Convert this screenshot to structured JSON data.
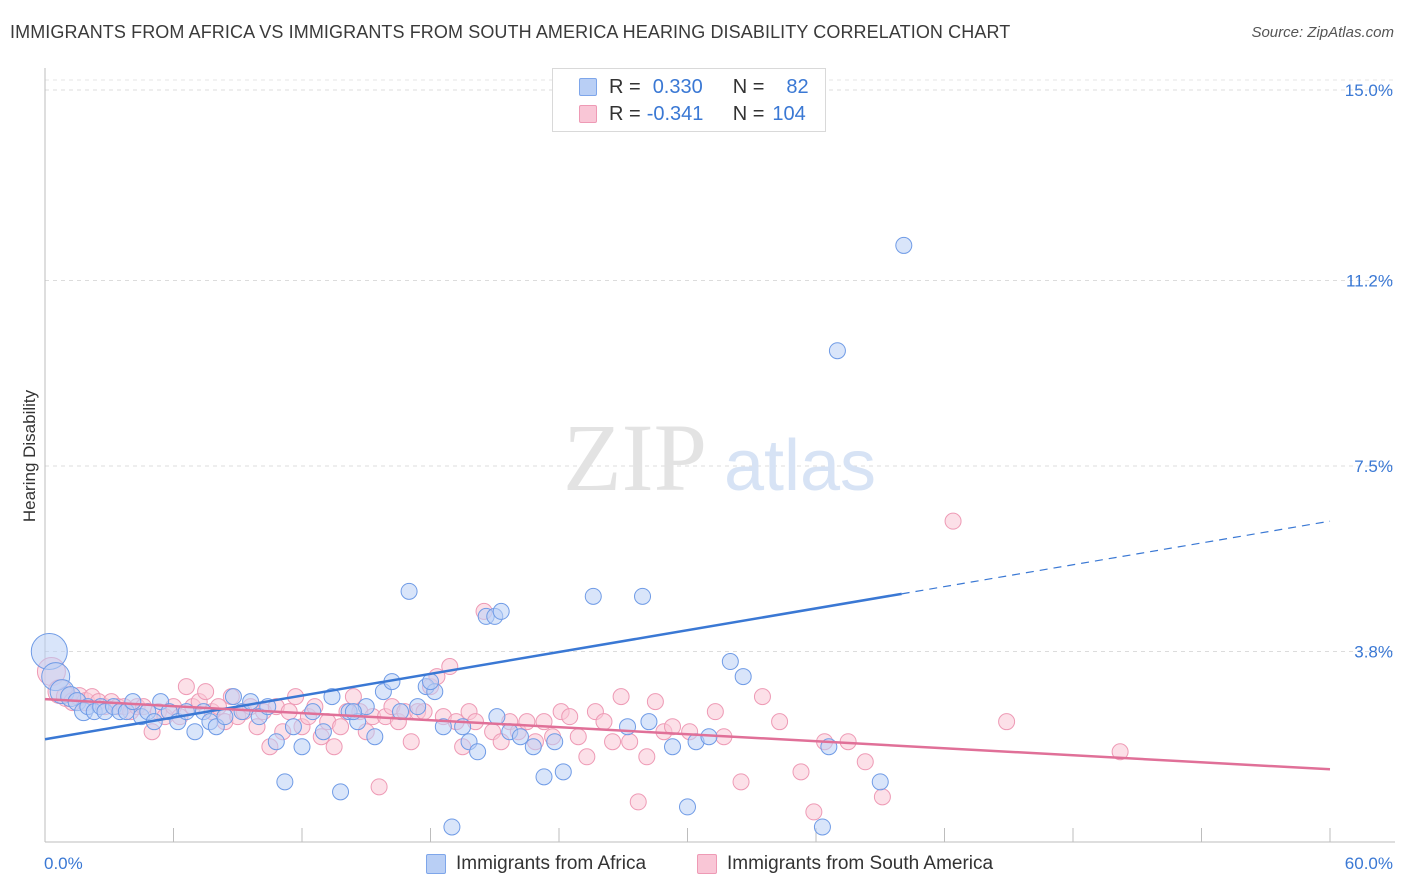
{
  "title": "IMMIGRANTS FROM AFRICA VS IMMIGRANTS FROM SOUTH AMERICA HEARING DISABILITY CORRELATION CHART",
  "source": "Source: ZipAtlas.com",
  "watermark": {
    "zip": "ZIP",
    "atlas": "atlas"
  },
  "legend": {
    "r_label": "R =",
    "n_label": "N =",
    "rows": [
      {
        "r": "0.330",
        "n": "82"
      },
      {
        "r": "-0.341",
        "n": "104"
      }
    ]
  },
  "bottom_legend": [
    "Immigrants from Africa",
    "Immigrants from South America"
  ],
  "colors": {
    "blue": "#3a78d4",
    "pink": "#e07098",
    "blue_fill": "#b9cff5",
    "pink_fill": "#f9c6d6",
    "axis_text": "#3a78d4"
  },
  "chart_data": {
    "type": "scatter",
    "title": "IMMIGRANTS FROM AFRICA VS IMMIGRANTS FROM SOUTH AMERICA HEARING DISABILITY CORRELATION CHART",
    "xlabel": "",
    "ylabel": "Hearing Disability",
    "xlim": [
      0,
      60
    ],
    "ylim": [
      0,
      15.2
    ],
    "x_tick_labels": [
      "0.0%",
      "60.0%"
    ],
    "y_ticks": [
      3.8,
      7.5,
      11.2,
      15.0
    ],
    "y_tick_labels": [
      "3.8%",
      "7.5%",
      "11.2%",
      "15.0%"
    ],
    "grid": "horizontal dashed",
    "series": [
      {
        "name": "Immigrants from Africa",
        "color": "#3a78d4",
        "r": 0.33,
        "n": 82,
        "trend": {
          "x0": 0,
          "y0": 2.05,
          "x1": 40,
          "y1": 4.95,
          "dashed_to_x": 60,
          "dashed_to_y": 6.4
        },
        "points": [
          [
            0.2,
            3.8,
            18
          ],
          [
            0.5,
            3.3,
            14
          ],
          [
            0.8,
            3.0,
            12
          ],
          [
            1.2,
            2.9,
            10
          ],
          [
            1.5,
            2.8,
            9
          ],
          [
            1.8,
            2.6,
            9
          ],
          [
            2.0,
            2.7,
            8
          ],
          [
            2.3,
            2.6,
            8
          ],
          [
            2.6,
            2.7,
            8
          ],
          [
            2.8,
            2.6,
            8
          ],
          [
            3.2,
            2.7,
            8
          ],
          [
            3.5,
            2.6,
            8
          ],
          [
            3.8,
            2.6,
            8
          ],
          [
            4.1,
            2.8,
            8
          ],
          [
            4.5,
            2.5,
            8
          ],
          [
            4.8,
            2.6,
            8
          ],
          [
            5.1,
            2.4,
            8
          ],
          [
            5.4,
            2.8,
            8
          ],
          [
            5.8,
            2.6,
            8
          ],
          [
            6.2,
            2.4,
            8
          ],
          [
            6.6,
            2.6,
            8
          ],
          [
            7.0,
            2.2,
            8
          ],
          [
            7.4,
            2.6,
            8
          ],
          [
            7.7,
            2.4,
            8
          ],
          [
            8.0,
            2.3,
            8
          ],
          [
            8.4,
            2.5,
            8
          ],
          [
            8.8,
            2.9,
            8
          ],
          [
            9.2,
            2.6,
            8
          ],
          [
            9.6,
            2.8,
            8
          ],
          [
            10.0,
            2.5,
            8
          ],
          [
            10.4,
            2.7,
            8
          ],
          [
            10.8,
            2.0,
            8
          ],
          [
            11.2,
            1.2,
            8
          ],
          [
            11.6,
            2.3,
            8
          ],
          [
            12.0,
            1.9,
            8
          ],
          [
            12.5,
            2.6,
            8
          ],
          [
            13.0,
            2.2,
            8
          ],
          [
            13.4,
            2.9,
            8
          ],
          [
            13.8,
            1.0,
            8
          ],
          [
            14.2,
            2.6,
            8
          ],
          [
            14.6,
            2.4,
            8
          ],
          [
            15.0,
            2.7,
            8
          ],
          [
            15.4,
            2.1,
            8
          ],
          [
            15.8,
            3.0,
            8
          ],
          [
            16.2,
            3.2,
            8
          ],
          [
            16.6,
            2.6,
            8
          ],
          [
            17.0,
            5.0,
            8
          ],
          [
            17.4,
            2.7,
            8
          ],
          [
            17.8,
            3.1,
            8
          ],
          [
            18.2,
            3.0,
            8
          ],
          [
            18.6,
            2.3,
            8
          ],
          [
            19.0,
            0.3,
            8
          ],
          [
            19.5,
            2.3,
            8
          ],
          [
            19.8,
            2.0,
            8
          ],
          [
            20.2,
            1.8,
            8
          ],
          [
            20.6,
            4.5,
            8
          ],
          [
            21.0,
            4.5,
            8
          ],
          [
            21.3,
            4.6,
            8
          ],
          [
            21.7,
            2.2,
            8
          ],
          [
            22.2,
            2.1,
            8
          ],
          [
            22.8,
            1.9,
            8
          ],
          [
            23.3,
            1.3,
            8
          ],
          [
            23.8,
            2.0,
            8
          ],
          [
            24.2,
            1.4,
            8
          ],
          [
            25.6,
            4.9,
            8
          ],
          [
            27.2,
            2.3,
            8
          ],
          [
            27.9,
            4.9,
            8
          ],
          [
            28.2,
            2.4,
            8
          ],
          [
            29.3,
            1.9,
            8
          ],
          [
            30.0,
            0.7,
            8
          ],
          [
            30.4,
            2.0,
            8
          ],
          [
            31.0,
            2.1,
            8
          ],
          [
            32.0,
            3.6,
            8
          ],
          [
            32.6,
            3.3,
            8
          ],
          [
            36.3,
            0.3,
            8
          ],
          [
            36.6,
            1.9,
            8
          ],
          [
            37.0,
            9.8,
            8
          ],
          [
            39.0,
            1.2,
            8
          ],
          [
            40.1,
            11.9,
            8
          ],
          [
            14.4,
            2.6,
            8
          ],
          [
            18.0,
            3.2,
            8
          ],
          [
            21.1,
            2.5,
            8
          ]
        ]
      },
      {
        "name": "Immigrants from South America",
        "color": "#e07098",
        "r": -0.341,
        "n": 104,
        "trend": {
          "x0": 0,
          "y0": 2.85,
          "x1": 60,
          "y1": 1.45
        },
        "points": [
          [
            0.3,
            3.4,
            14
          ],
          [
            0.7,
            3.0,
            12
          ],
          [
            1.0,
            2.9,
            10
          ],
          [
            1.3,
            2.8,
            9
          ],
          [
            1.6,
            2.9,
            9
          ],
          [
            1.9,
            2.8,
            9
          ],
          [
            2.2,
            2.9,
            8
          ],
          [
            2.5,
            2.8,
            8
          ],
          [
            2.8,
            2.7,
            8
          ],
          [
            3.1,
            2.8,
            8
          ],
          [
            3.4,
            2.7,
            8
          ],
          [
            3.7,
            2.7,
            8
          ],
          [
            4.0,
            2.6,
            8
          ],
          [
            4.3,
            2.7,
            8
          ],
          [
            4.6,
            2.7,
            8
          ],
          [
            5.0,
            2.2,
            8
          ],
          [
            5.3,
            2.6,
            8
          ],
          [
            5.6,
            2.5,
            8
          ],
          [
            6.0,
            2.7,
            8
          ],
          [
            6.3,
            2.5,
            8
          ],
          [
            6.6,
            3.1,
            8
          ],
          [
            6.9,
            2.7,
            8
          ],
          [
            7.2,
            2.8,
            8
          ],
          [
            7.5,
            3.0,
            8
          ],
          [
            7.8,
            2.6,
            8
          ],
          [
            8.1,
            2.7,
            8
          ],
          [
            8.4,
            2.4,
            8
          ],
          [
            8.7,
            2.9,
            8
          ],
          [
            9.0,
            2.5,
            8
          ],
          [
            9.3,
            2.6,
            8
          ],
          [
            9.6,
            2.7,
            8
          ],
          [
            9.9,
            2.3,
            8
          ],
          [
            10.2,
            2.6,
            8
          ],
          [
            10.5,
            1.9,
            8
          ],
          [
            10.8,
            2.7,
            8
          ],
          [
            11.1,
            2.2,
            8
          ],
          [
            11.4,
            2.6,
            8
          ],
          [
            11.7,
            2.9,
            8
          ],
          [
            12.0,
            2.3,
            8
          ],
          [
            12.3,
            2.5,
            8
          ],
          [
            12.6,
            2.7,
            8
          ],
          [
            12.9,
            2.1,
            8
          ],
          [
            13.2,
            2.4,
            8
          ],
          [
            13.5,
            1.9,
            8
          ],
          [
            13.8,
            2.3,
            8
          ],
          [
            14.1,
            2.6,
            8
          ],
          [
            14.4,
            2.9,
            8
          ],
          [
            14.7,
            2.6,
            8
          ],
          [
            15.0,
            2.2,
            8
          ],
          [
            15.3,
            2.5,
            8
          ],
          [
            15.6,
            1.1,
            8
          ],
          [
            15.9,
            2.5,
            8
          ],
          [
            16.2,
            2.7,
            8
          ],
          [
            16.5,
            2.4,
            8
          ],
          [
            16.8,
            2.6,
            8
          ],
          [
            17.1,
            2.0,
            8
          ],
          [
            17.4,
            2.6,
            8
          ],
          [
            17.7,
            2.6,
            8
          ],
          [
            18.0,
            3.1,
            8
          ],
          [
            18.3,
            3.3,
            8
          ],
          [
            18.6,
            2.5,
            8
          ],
          [
            18.9,
            3.5,
            8
          ],
          [
            19.2,
            2.4,
            8
          ],
          [
            19.5,
            1.9,
            8
          ],
          [
            19.8,
            2.6,
            8
          ],
          [
            20.1,
            2.4,
            8
          ],
          [
            20.5,
            4.6,
            8
          ],
          [
            20.9,
            2.2,
            8
          ],
          [
            21.3,
            2.0,
            8
          ],
          [
            21.7,
            2.4,
            8
          ],
          [
            22.1,
            2.2,
            8
          ],
          [
            22.5,
            2.4,
            8
          ],
          [
            22.9,
            2.0,
            8
          ],
          [
            23.3,
            2.4,
            8
          ],
          [
            23.7,
            2.1,
            8
          ],
          [
            24.1,
            2.6,
            8
          ],
          [
            24.5,
            2.5,
            8
          ],
          [
            24.9,
            2.1,
            8
          ],
          [
            25.3,
            1.7,
            8
          ],
          [
            25.7,
            2.6,
            8
          ],
          [
            26.1,
            2.4,
            8
          ],
          [
            26.5,
            2.0,
            8
          ],
          [
            26.9,
            2.9,
            8
          ],
          [
            27.3,
            2.0,
            8
          ],
          [
            27.7,
            0.8,
            8
          ],
          [
            28.1,
            1.7,
            8
          ],
          [
            28.5,
            2.8,
            8
          ],
          [
            28.9,
            2.2,
            8
          ],
          [
            29.3,
            2.3,
            8
          ],
          [
            30.1,
            2.2,
            8
          ],
          [
            31.3,
            2.6,
            8
          ],
          [
            31.7,
            2.1,
            8
          ],
          [
            32.5,
            1.2,
            8
          ],
          [
            33.5,
            2.9,
            8
          ],
          [
            34.3,
            2.4,
            8
          ],
          [
            35.3,
            1.4,
            8
          ],
          [
            35.9,
            0.6,
            8
          ],
          [
            36.4,
            2.0,
            8
          ],
          [
            37.5,
            2.0,
            8
          ],
          [
            38.3,
            1.6,
            8
          ],
          [
            39.1,
            0.9,
            8
          ],
          [
            42.4,
            6.4,
            8
          ],
          [
            44.9,
            2.4,
            8
          ],
          [
            50.2,
            1.8,
            8
          ]
        ]
      }
    ]
  }
}
